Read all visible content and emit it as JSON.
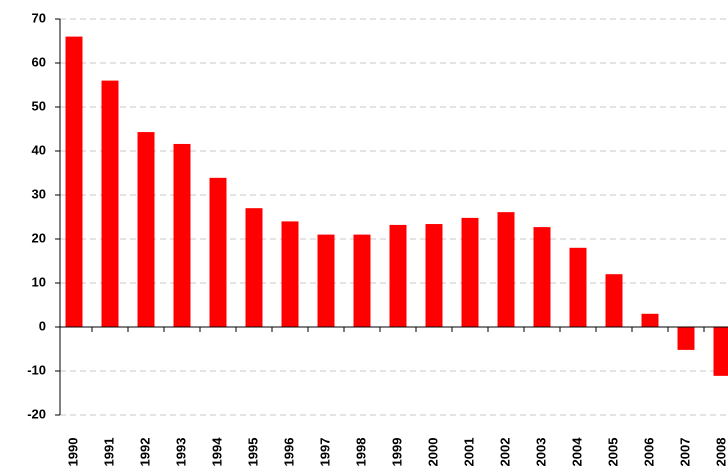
{
  "chart_data": {
    "type": "bar",
    "categories": [
      "1990",
      "1991",
      "1992",
      "1993",
      "1994",
      "1995",
      "1996",
      "1997",
      "1998",
      "1999",
      "2000",
      "2001",
      "2002",
      "2003",
      "2004",
      "2005",
      "2006",
      "2007",
      "2008"
    ],
    "values": [
      66,
      56,
      44.3,
      41.6,
      33.9,
      27,
      24,
      21,
      21,
      23.2,
      23.4,
      24.8,
      26.1,
      22.7,
      18,
      12,
      3,
      -5.2,
      -11.1
    ],
    "color": "#ff0000",
    "ylim": [
      -20,
      70
    ],
    "yticks": [
      -20,
      -10,
      0,
      10,
      20,
      30,
      40,
      50,
      60,
      70
    ],
    "grid": true
  }
}
